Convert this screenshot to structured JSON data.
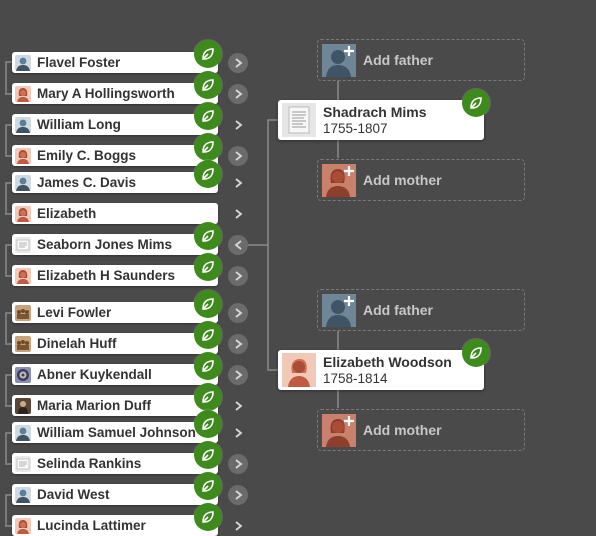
{
  "ancestors": [
    {
      "name": "Flavel Foster",
      "avatar": "male-silhouette-icon",
      "has_hint": true,
      "expand": "circle-right"
    },
    {
      "name": "Mary A Hollingsworth",
      "avatar": "female-silhouette-icon",
      "has_hint": true,
      "expand": "circle-right"
    },
    {
      "name": "William Long",
      "avatar": "male-silhouette-icon",
      "has_hint": true,
      "expand": "chevron-right"
    },
    {
      "name": "Emily C. Boggs",
      "avatar": "female-silhouette-icon",
      "has_hint": true,
      "expand": "circle-right"
    },
    {
      "name": "James C. Davis",
      "avatar": "male-silhouette-icon",
      "has_hint": true,
      "expand": "chevron-right"
    },
    {
      "name": "Elizabeth",
      "avatar": "female-silhouette-icon",
      "has_hint": false,
      "expand": "chevron-right"
    },
    {
      "name": "Seaborn Jones Mims",
      "avatar": "document-photo-icon",
      "has_hint": true,
      "expand": "circle-left"
    },
    {
      "name": "Elizabeth H Saunders",
      "avatar": "female-silhouette-icon",
      "has_hint": true,
      "expand": "circle-right"
    },
    {
      "name": "Levi Fowler",
      "avatar": "group-photo-icon",
      "has_hint": true,
      "expand": "circle-right"
    },
    {
      "name": "Dinelah Huff",
      "avatar": "group-photo-icon",
      "has_hint": true,
      "expand": "circle-right"
    },
    {
      "name": "Abner Kuykendall",
      "avatar": "emblem-photo-icon",
      "has_hint": true,
      "expand": "circle-right"
    },
    {
      "name": "Maria Marion Duff",
      "avatar": "portrait-photo-icon",
      "has_hint": true,
      "expand": "chevron-right"
    },
    {
      "name": "William Samuel Johnson",
      "avatar": "male-silhouette-icon",
      "has_hint": true,
      "expand": "chevron-right"
    },
    {
      "name": "Selinda Rankins",
      "avatar": "document-photo-icon",
      "has_hint": true,
      "expand": "circle-right"
    },
    {
      "name": "David West",
      "avatar": "male-silhouette-icon",
      "has_hint": true,
      "expand": "circle-right"
    },
    {
      "name": "Lucinda Lattimer",
      "avatar": "female-silhouette-icon",
      "has_hint": true,
      "expand": "chevron-right"
    }
  ],
  "focus_people": [
    {
      "name": "Shadrach Mims",
      "dates": "1755-1807",
      "photo": "document-photo-icon",
      "has_hint": true
    },
    {
      "name": "Elizabeth Woodson",
      "dates": "1758-1814",
      "photo": "female-silhouette-icon",
      "has_hint": true
    }
  ],
  "add_slots": [
    {
      "label": "Add father",
      "placeholder": "male-silhouette-icon"
    },
    {
      "label": "Add mother",
      "placeholder": "female-silhouette-icon"
    },
    {
      "label": "Add father",
      "placeholder": "male-silhouette-icon"
    },
    {
      "label": "Add mother",
      "placeholder": "female-silhouette-icon"
    }
  ],
  "colors": {
    "background": "#4a4a4a",
    "hint_green": "#3e8a1d",
    "male_avatar": "#5c7e96",
    "female_avatar": "#d16e56"
  }
}
